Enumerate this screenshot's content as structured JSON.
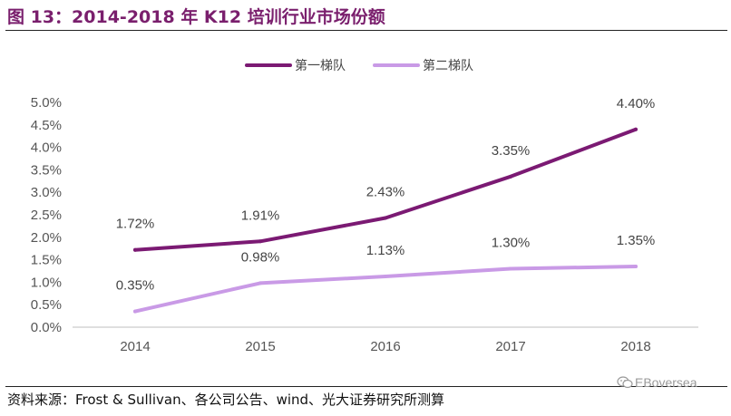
{
  "page": {
    "title": "图 13：2014-2018 年 K12 培训行业市场份额",
    "source": "资料来源：Frost & Sullivan、各公司公告、wind、光大证券研究所测算",
    "watermark": "EBoversea",
    "watermark_icon": "wechat-icon"
  },
  "chart_data": {
    "type": "line",
    "x": [
      "2014",
      "2015",
      "2016",
      "2017",
      "2018"
    ],
    "ylim": [
      0,
      5.0
    ],
    "yticks": [
      "0.0%",
      "0.5%",
      "1.0%",
      "1.5%",
      "2.0%",
      "2.5%",
      "3.0%",
      "3.5%",
      "4.0%",
      "4.5%",
      "5.0%"
    ],
    "grid": false,
    "legend_position": "top-center",
    "series": [
      {
        "name": "第一梯队",
        "color": "#7b1a73",
        "values": [
          1.72,
          1.91,
          2.43,
          3.35,
          4.4
        ],
        "labels": [
          "1.72%",
          "1.91%",
          "2.43%",
          "3.35%",
          "4.40%"
        ]
      },
      {
        "name": "第二梯队",
        "color": "#c99ae6",
        "values": [
          0.35,
          0.98,
          1.13,
          1.3,
          1.35
        ],
        "labels": [
          "0.35%",
          "0.98%",
          "1.13%",
          "1.30%",
          "1.35%"
        ]
      }
    ]
  }
}
